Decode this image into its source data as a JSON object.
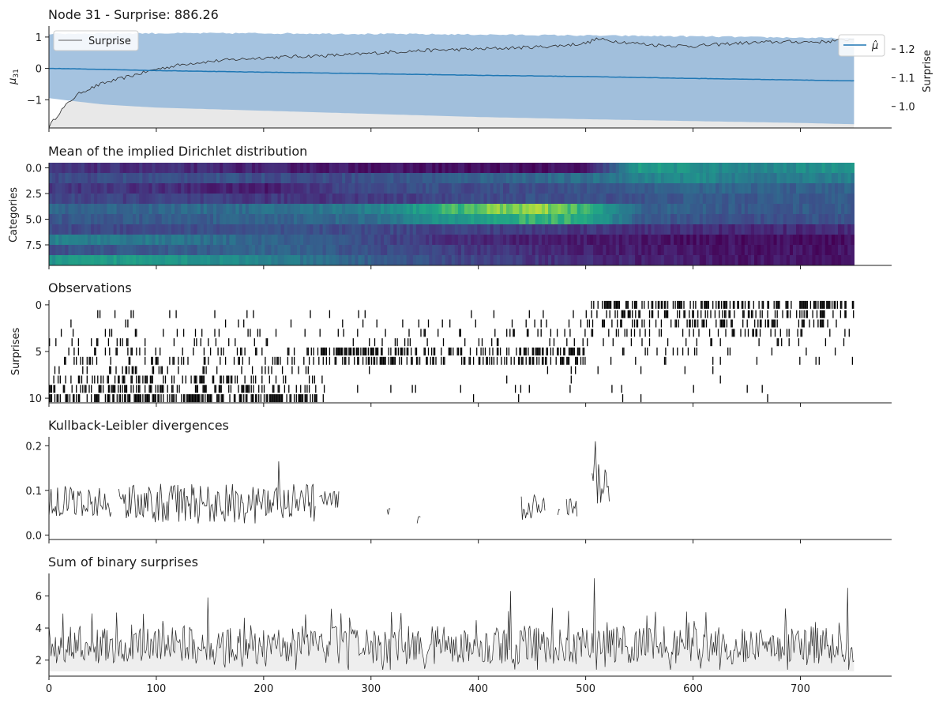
{
  "figure": {
    "background": "#ffffff"
  },
  "chart_data": [
    {
      "id": "surprise-panel",
      "type": "line",
      "title": "Node 31 - Surprise: 886.26",
      "ylabel": "μ31",
      "ylabel_right": "Surprise",
      "xlim": [
        0,
        785
      ],
      "ylim": [
        -1.9,
        1.35
      ],
      "ylim_right": [
        0.925,
        1.28
      ],
      "yticks": [
        -1,
        0,
        1
      ],
      "yticks_right": [
        1.0,
        1.1,
        1.2
      ],
      "legend_left": {
        "label": "Surprise",
        "placement": "upper-left"
      },
      "legend_right": {
        "label": "μ̂",
        "placement": "upper-right"
      },
      "colors": {
        "mean": "#1f77b4",
        "band": "#8fb4d8",
        "surprise": "#2b2b2b",
        "surprise_fill": "#e8e8e8"
      },
      "series": [
        {
          "name": "μ̂",
          "axis": "left",
          "x": [
            0,
            50,
            100,
            200,
            300,
            400,
            500,
            600,
            700,
            750
          ],
          "y": [
            0.0,
            -0.03,
            -0.07,
            -0.12,
            -0.17,
            -0.22,
            -0.26,
            -0.32,
            -0.37,
            -0.4
          ],
          "band_upper": [
            1.1,
            1.12,
            1.12,
            1.12,
            1.1,
            1.08,
            1.05,
            1.02,
            0.98,
            0.95
          ],
          "band_lower": [
            -0.95,
            -1.15,
            -1.25,
            -1.35,
            -1.45,
            -1.55,
            -1.62,
            -1.68,
            -1.74,
            -1.78
          ]
        },
        {
          "name": "Surprise",
          "axis": "right",
          "x": [
            0,
            10,
            20,
            30,
            50,
            80,
            100,
            130,
            160,
            200,
            240,
            280,
            320,
            350,
            400,
            440,
            470,
            500,
            510,
            520,
            560,
            600,
            640,
            680,
            720,
            750
          ],
          "y": [
            0.93,
            0.98,
            1.02,
            1.05,
            1.08,
            1.11,
            1.13,
            1.15,
            1.16,
            1.17,
            1.175,
            1.18,
            1.19,
            1.195,
            1.2,
            1.205,
            1.21,
            1.22,
            1.235,
            1.23,
            1.215,
            1.21,
            1.22,
            1.225,
            1.225,
            1.235
          ]
        }
      ]
    },
    {
      "id": "dirichlet-panel",
      "type": "heatmap",
      "title": "Mean of the implied Dirichlet distribution",
      "ylabel": "Categories",
      "yticks": [
        0.0,
        2.5,
        5.0,
        7.5
      ],
      "xlim": [
        0,
        785
      ],
      "ylim": [
        -0.5,
        9.5
      ],
      "x_extent": [
        0,
        750
      ],
      "colormap": "viridis",
      "segments": [
        0,
        100,
        150,
        200,
        250,
        300,
        350,
        400,
        450,
        500,
        550,
        600,
        650,
        700,
        750
      ],
      "rows": [
        [
          0.18,
          0.16,
          0.14,
          0.12,
          0.1,
          0.08,
          0.06,
          0.05,
          0.05,
          0.05,
          0.7,
          0.62,
          0.55,
          0.6,
          0.68
        ],
        [
          0.28,
          0.3,
          0.32,
          0.3,
          0.28,
          0.32,
          0.35,
          0.4,
          0.42,
          0.45,
          0.55,
          0.6,
          0.5,
          0.52,
          0.55
        ],
        [
          0.2,
          0.18,
          0.12,
          0.1,
          0.22,
          0.28,
          0.3,
          0.28,
          0.3,
          0.32,
          0.38,
          0.42,
          0.4,
          0.38,
          0.4
        ],
        [
          0.26,
          0.24,
          0.22,
          0.2,
          0.2,
          0.22,
          0.25,
          0.28,
          0.3,
          0.3,
          0.32,
          0.36,
          0.35,
          0.37,
          0.36
        ],
        [
          0.4,
          0.42,
          0.44,
          0.45,
          0.48,
          0.55,
          0.72,
          0.85,
          0.9,
          0.78,
          0.4,
          0.38,
          0.34,
          0.36,
          0.35
        ],
        [
          0.34,
          0.36,
          0.38,
          0.4,
          0.42,
          0.44,
          0.6,
          0.7,
          0.78,
          0.75,
          0.35,
          0.32,
          0.3,
          0.32,
          0.3
        ],
        [
          0.28,
          0.28,
          0.3,
          0.3,
          0.3,
          0.28,
          0.26,
          0.24,
          0.22,
          0.2,
          0.18,
          0.16,
          0.15,
          0.15,
          0.15
        ],
        [
          0.55,
          0.5,
          0.45,
          0.4,
          0.35,
          0.28,
          0.2,
          0.15,
          0.12,
          0.1,
          0.08,
          0.06,
          0.05,
          0.05,
          0.05
        ],
        [
          0.3,
          0.35,
          0.38,
          0.4,
          0.36,
          0.3,
          0.25,
          0.2,
          0.16,
          0.12,
          0.1,
          0.08,
          0.07,
          0.06,
          0.06
        ],
        [
          0.65,
          0.7,
          0.62,
          0.55,
          0.45,
          0.38,
          0.3,
          0.25,
          0.2,
          0.16,
          0.12,
          0.1,
          0.08,
          0.07,
          0.06
        ]
      ]
    },
    {
      "id": "observations-panel",
      "type": "scatter",
      "title": "Observations",
      "ylabel": "Surprises",
      "yticks": [
        0,
        5,
        10
      ],
      "xlim": [
        0,
        785
      ],
      "ylim": [
        10.5,
        -0.5
      ],
      "marker": "vertical-tick",
      "color": "#000000",
      "row_density": [
        {
          "row": 0,
          "ranges": [
            [
              505,
              750,
              0.55
            ]
          ]
        },
        {
          "row": 1,
          "ranges": [
            [
              0,
              500,
              0.03
            ],
            [
              500,
              750,
              0.35
            ]
          ]
        },
        {
          "row": 2,
          "ranges": [
            [
              0,
              300,
              0.05
            ],
            [
              300,
              500,
              0.08
            ],
            [
              500,
              750,
              0.3
            ]
          ]
        },
        {
          "row": 3,
          "ranges": [
            [
              0,
              500,
              0.1
            ],
            [
              500,
              750,
              0.18
            ]
          ]
        },
        {
          "row": 4,
          "ranges": [
            [
              0,
              750,
              0.08
            ]
          ]
        },
        {
          "row": 5,
          "ranges": [
            [
              0,
              250,
              0.12
            ],
            [
              250,
              500,
              0.45
            ],
            [
              500,
              750,
              0.06
            ]
          ]
        },
        {
          "row": 6,
          "ranges": [
            [
              0,
              250,
              0.2
            ],
            [
              250,
              500,
              0.4
            ],
            [
              500,
              750,
              0.03
            ]
          ]
        },
        {
          "row": 7,
          "ranges": [
            [
              0,
              250,
              0.15
            ],
            [
              250,
              750,
              0.02
            ]
          ]
        },
        {
          "row": 8,
          "ranges": [
            [
              0,
              250,
              0.35
            ],
            [
              250,
              750,
              0.01
            ]
          ]
        },
        {
          "row": 9,
          "ranges": [
            [
              0,
              250,
              0.35
            ],
            [
              250,
              750,
              0.02
            ]
          ]
        },
        {
          "row": 10,
          "ranges": [
            [
              0,
              250,
              0.55
            ],
            [
              250,
              750,
              0.01
            ]
          ]
        }
      ]
    },
    {
      "id": "kl-panel",
      "type": "line",
      "title": "Kullback-Leibler divergences",
      "xlim": [
        0,
        785
      ],
      "ylim": [
        -0.01,
        0.22
      ],
      "yticks": [
        0.0,
        0.1,
        0.2
      ],
      "color": "#2b2b2b",
      "segments": [
        {
          "x_range": [
            0,
            58
          ],
          "mean": 0.075,
          "spread": 0.035
        },
        {
          "x_range": [
            65,
            248
          ],
          "mean": 0.07,
          "spread": 0.045
        },
        {
          "x_range": [
            252,
            270
          ],
          "mean": 0.08,
          "spread": 0.02
        },
        {
          "x_range": [
            315,
            318
          ],
          "mean": 0.05,
          "spread": 0.01
        },
        {
          "x_range": [
            343,
            346
          ],
          "mean": 0.03,
          "spread": 0.015
        },
        {
          "x_range": [
            440,
            462
          ],
          "mean": 0.06,
          "spread": 0.03
        },
        {
          "x_range": [
            474,
            476
          ],
          "mean": 0.05,
          "spread": 0.008
        },
        {
          "x_range": [
            482,
            492
          ],
          "mean": 0.06,
          "spread": 0.025
        },
        {
          "x_range": [
            506,
            522
          ],
          "mean": 0.12,
          "spread": 0.05
        }
      ],
      "peaks": [
        {
          "x": 509,
          "y": 0.21
        },
        {
          "x": 214,
          "y": 0.165
        }
      ]
    },
    {
      "id": "binary-surprise-panel",
      "type": "area",
      "title": "Sum of binary surprises",
      "xlim": [
        0,
        785
      ],
      "ylim": [
        1.0,
        7.4
      ],
      "yticks": [
        2,
        4,
        6
      ],
      "xticks": [
        0,
        100,
        200,
        300,
        400,
        500,
        600,
        700
      ],
      "x_extent": [
        0,
        750
      ],
      "baseline": 1.3,
      "mean": 2.7,
      "spread": 1.2,
      "colors": {
        "line": "#2b2b2b",
        "fill": "#eeeeee"
      },
      "peaks": [
        {
          "x": 508,
          "y": 7.1
        },
        {
          "x": 744,
          "y": 6.5
        },
        {
          "x": 430,
          "y": 6.3
        },
        {
          "x": 148,
          "y": 5.9
        }
      ]
    }
  ]
}
